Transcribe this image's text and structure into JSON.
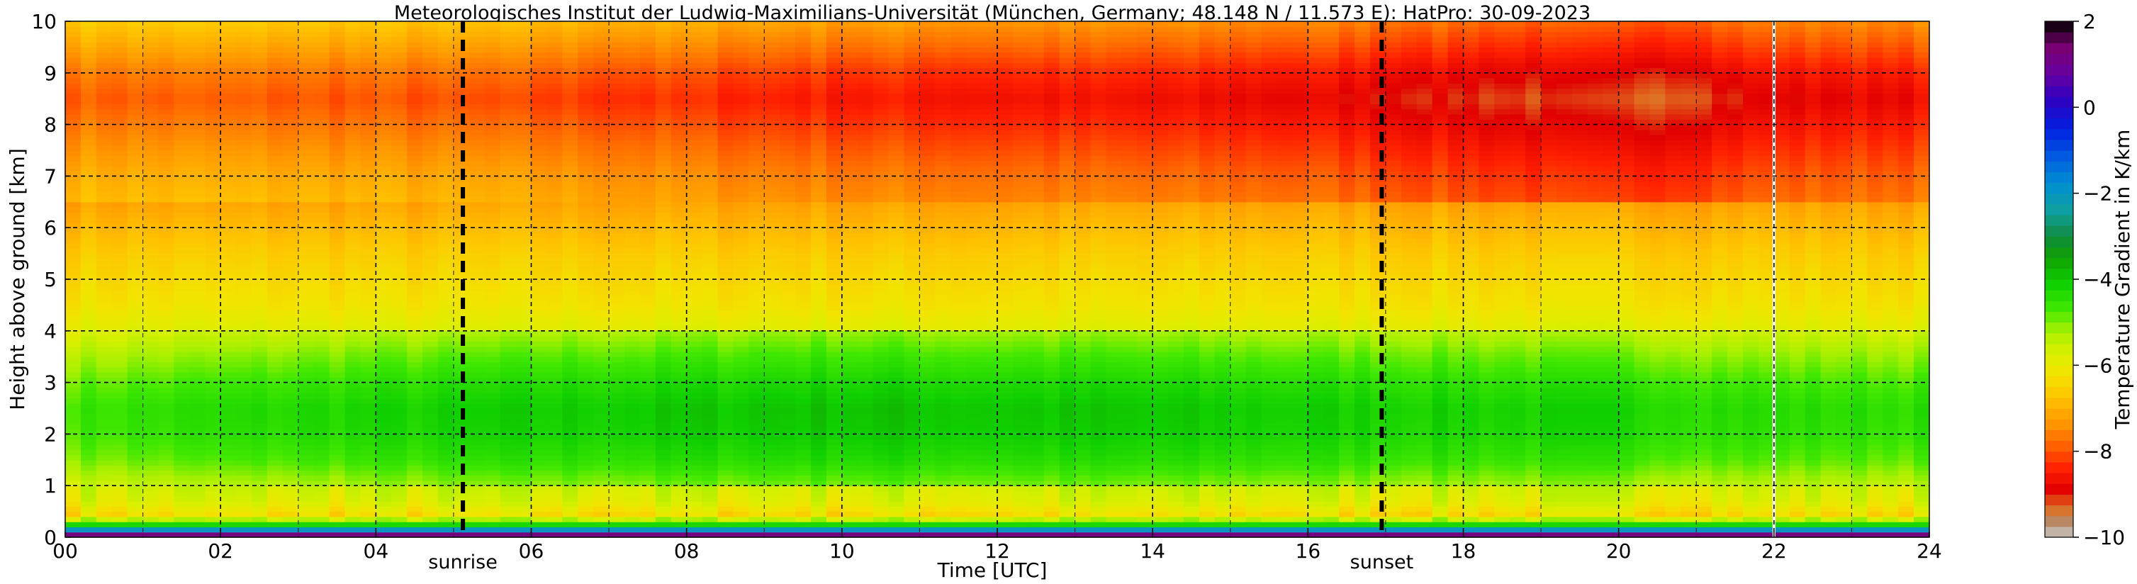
{
  "chart_data": {
    "type": "heatmap",
    "title": "Meteorologisches Institut der Ludwig-Maximilians-Universität (München, Germany; 48.148 N / 11.573 E):    HatPro: 30-09-2023",
    "xlabel": "Time [UTC]",
    "ylabel": "Height above ground [km]",
    "xlim": [
      0,
      24
    ],
    "ylim": [
      0,
      10
    ],
    "x_ticks": [
      0,
      2,
      4,
      6,
      8,
      10,
      12,
      14,
      16,
      18,
      20,
      22,
      24
    ],
    "x_tick_labels": [
      "00",
      "02",
      "04",
      "06",
      "08",
      "10",
      "12",
      "14",
      "16",
      "18",
      "20",
      "22",
      "24"
    ],
    "y_ticks": [
      0,
      1,
      2,
      3,
      4,
      5,
      6,
      7,
      8,
      9,
      10
    ],
    "y_tick_labels": [
      "0",
      "1",
      "2",
      "3",
      "4",
      "5",
      "6",
      "7",
      "8",
      "9",
      "10"
    ],
    "grid": true,
    "events": [
      {
        "label": "sunrise",
        "time": 5.12
      },
      {
        "label": "sunset",
        "time": 16.95
      }
    ],
    "data_gap_time": 22.0,
    "colorbar": {
      "label": "Temperature Gradient in K/km",
      "range": [
        -10,
        2
      ],
      "ticks": [
        2,
        0,
        -2,
        -4,
        -6,
        -8,
        -10
      ],
      "tick_labels": [
        "2",
        "0",
        "−2",
        "−4",
        "−6",
        "−8",
        "−10"
      ],
      "colors": [
        [
          -10,
          "#cfcfcf"
        ],
        [
          -9.7,
          "#b08c70"
        ],
        [
          -9.3,
          "#e07020"
        ],
        [
          -8.9,
          "#e00000"
        ],
        [
          -8.4,
          "#ff2000"
        ],
        [
          -7.8,
          "#ff6a00"
        ],
        [
          -7.3,
          "#ff9a00"
        ],
        [
          -6.8,
          "#ffc000"
        ],
        [
          -6.2,
          "#f2e400"
        ],
        [
          -5.7,
          "#d8f000"
        ],
        [
          -5.2,
          "#a6f000"
        ],
        [
          -4.7,
          "#40e800"
        ],
        [
          -4.1,
          "#10d000"
        ],
        [
          -3.5,
          "#10a000"
        ],
        [
          -3.0,
          "#108c40"
        ],
        [
          -2.4,
          "#10a0a0"
        ],
        [
          -1.8,
          "#0090d0"
        ],
        [
          -1.2,
          "#0060e0"
        ],
        [
          -0.5,
          "#0020e0"
        ],
        [
          0.2,
          "#3000c0"
        ],
        [
          0.8,
          "#6800a0"
        ],
        [
          1.4,
          "#7a0070"
        ],
        [
          2.0,
          "#000000"
        ]
      ]
    },
    "profile": [
      {
        "height": 0.0,
        "gradient": 2.0
      },
      {
        "height": 0.05,
        "gradient": 1.2
      },
      {
        "height": 0.1,
        "gradient": -0.5
      },
      {
        "height": 0.15,
        "gradient": -2.0
      },
      {
        "height": 0.22,
        "gradient": -3.8
      },
      {
        "height": 0.3,
        "gradient": -5.0
      },
      {
        "height": 0.45,
        "gradient": -6.3
      },
      {
        "height": 0.7,
        "gradient": -5.8
      },
      {
        "height": 1.0,
        "gradient": -5.6
      },
      {
        "height": 1.5,
        "gradient": -5.0
      },
      {
        "height": 2.0,
        "gradient": -4.7
      },
      {
        "height": 2.5,
        "gradient": -4.6
      },
      {
        "height": 3.0,
        "gradient": -4.9
      },
      {
        "height": 3.5,
        "gradient": -5.3
      },
      {
        "height": 4.0,
        "gradient": -5.8
      },
      {
        "height": 4.5,
        "gradient": -6.2
      },
      {
        "height": 5.0,
        "gradient": -6.4
      },
      {
        "height": 5.5,
        "gradient": -6.6
      },
      {
        "height": 6.0,
        "gradient": -6.9
      },
      {
        "height": 6.5,
        "gradient": -7.2
      },
      {
        "height": 7.0,
        "gradient": -7.4
      },
      {
        "height": 7.5,
        "gradient": -7.7
      },
      {
        "height": 8.0,
        "gradient": -8.0
      },
      {
        "height": 8.5,
        "gradient": -8.3
      },
      {
        "height": 9.0,
        "gradient": -8.0
      },
      {
        "height": 9.5,
        "gradient": -7.5
      },
      {
        "height": 10.0,
        "gradient": -7.0
      }
    ],
    "time_variation": [
      {
        "time": 0,
        "upper_shift": 0.4,
        "lower_shift": 0.0
      },
      {
        "time": 4,
        "upper_shift": 0.3,
        "lower_shift": 0.4
      },
      {
        "time": 10,
        "upper_shift": -0.2,
        "lower_shift": 0.7
      },
      {
        "time": 16,
        "upper_shift": -0.5,
        "lower_shift": 0.5
      },
      {
        "time": 20,
        "upper_shift": -1.0,
        "lower_shift": 0.4
      },
      {
        "time": 22,
        "upper_shift": -0.6,
        "lower_shift": 0.2
      },
      {
        "time": 24,
        "upper_shift": -0.4,
        "lower_shift": 0.2
      }
    ]
  }
}
